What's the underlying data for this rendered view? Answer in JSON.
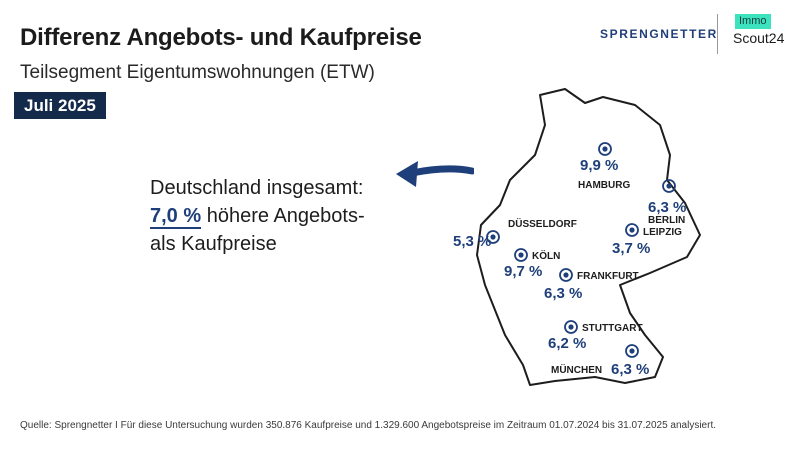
{
  "header": {
    "title": "Differenz Angebots- und Kaufpreise",
    "subtitle": "Teilsegment Eigentumswohnungen (ETW)",
    "date_badge": "Juli 2025"
  },
  "logos": {
    "sprengnetter": "SPRENGNETTER",
    "immo": "Immo",
    "scout": "Scout24"
  },
  "national": {
    "label": "Deutschland insgesamt:",
    "value": "7,0 %",
    "suffix": " höhere Angebots-",
    "line3": "als Kaufpreise"
  },
  "cities": [
    {
      "name": "HAMBURG",
      "value": "9,9 %"
    },
    {
      "name": "BERLIN",
      "value": "6,3 %"
    },
    {
      "name": "LEIPZIG",
      "value": "3,7 %"
    },
    {
      "name": "DÜSSELDORF",
      "value": "5,3 %"
    },
    {
      "name": "KÖLN",
      "value": "9,7 %"
    },
    {
      "name": "FRANKFURT",
      "value": "6,3 %"
    },
    {
      "name": "STUTTGART",
      "value": "6,2 %"
    },
    {
      "name": "MÜNCHEN",
      "value": "6,3 %"
    }
  ],
  "colors": {
    "accent": "#1f3f7a",
    "badge": "#142a4a",
    "immo": "#3de3be"
  },
  "footer": {
    "source": "Quelle: Sprengnetter I Für diese Untersuchung wurden 350.876 Kaufpreise und 1.329.600 Angebotspreise im Zeitraum 01.07.2024 bis 31.07.2025 analysiert."
  }
}
